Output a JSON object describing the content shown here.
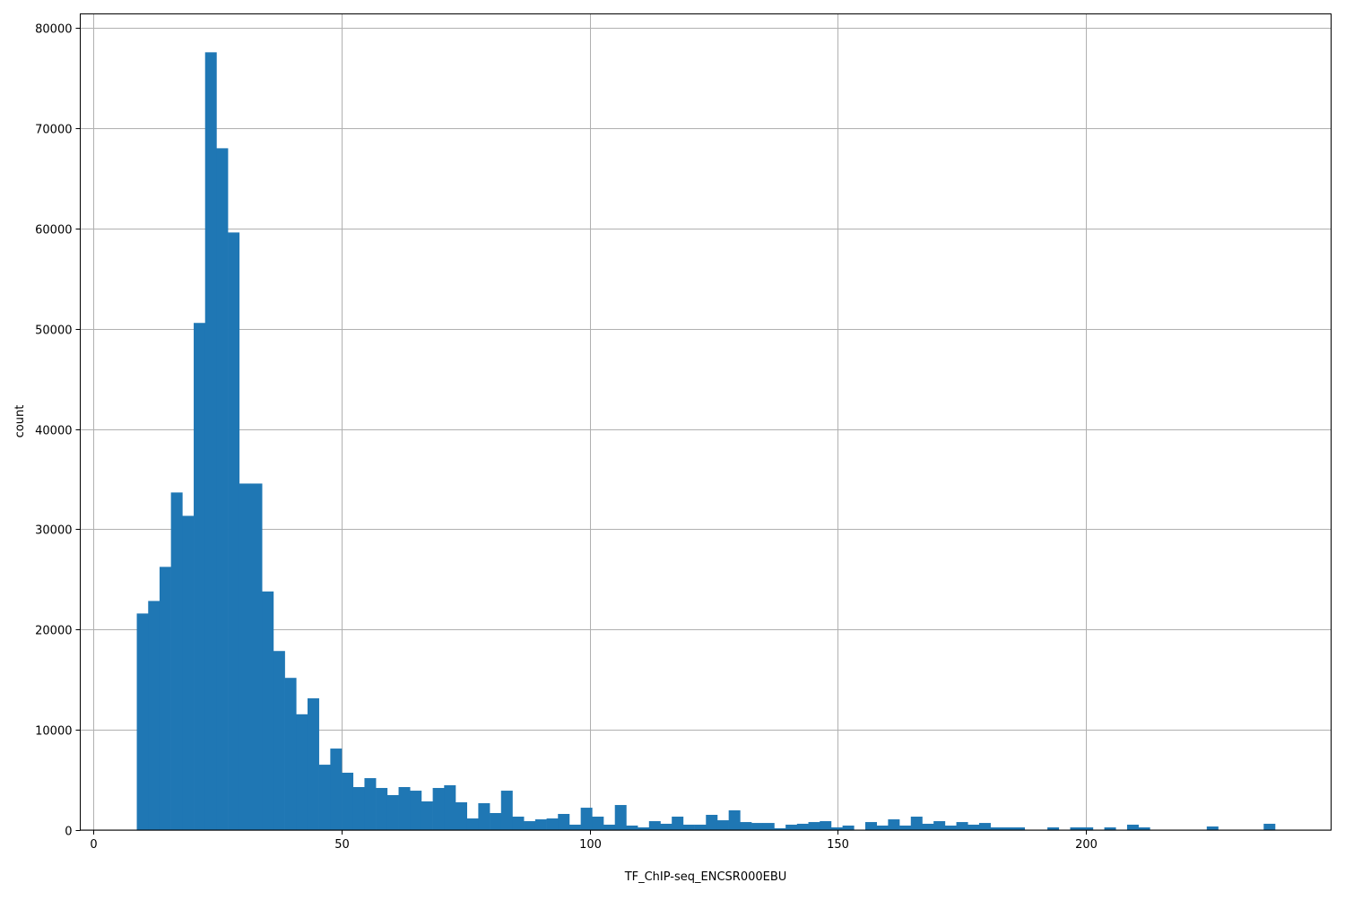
{
  "chart_data": {
    "type": "histogram",
    "title": "",
    "xlabel": "TF_ChIP-seq_ENCSR000EBU",
    "ylabel": "count",
    "xlim": [
      -2.7,
      249.5
    ],
    "ylim": [
      0,
      81400
    ],
    "grid": true,
    "bar_color": "#1f77b4",
    "bin_range": [
      8.7,
      238.2
    ],
    "x_ticks": [
      0,
      50,
      100,
      150,
      200
    ],
    "x_tick_labels": [
      "0",
      "50",
      "100",
      "150",
      "200"
    ],
    "y_ticks": [
      0,
      10000,
      20000,
      30000,
      40000,
      50000,
      60000,
      70000,
      80000
    ],
    "y_tick_labels": [
      "0",
      "10000",
      "20000",
      "30000",
      "40000",
      "50000",
      "60000",
      "70000",
      "80000"
    ],
    "counts": [
      21600,
      22850,
      26250,
      33670,
      31340,
      50580,
      77570,
      68000,
      59600,
      34560,
      34560,
      23800,
      17860,
      15180,
      11550,
      13140,
      6520,
      8130,
      5720,
      4290,
      5180,
      4200,
      3490,
      4290,
      3930,
      2860,
      4200,
      4470,
      2770,
      1160,
      2680,
      1700,
      3930,
      1340,
      890,
      1070,
      1160,
      1610,
      540,
      2230,
      1340,
      540,
      2500,
      450,
      270,
      890,
      630,
      1340,
      540,
      540,
      1520,
      980,
      1970,
      800,
      710,
      710,
      180,
      540,
      630,
      800,
      890,
      270,
      450,
      0,
      800,
      450,
      1070,
      450,
      1340,
      630,
      890,
      450,
      800,
      540,
      710,
      270,
      270,
      270,
      0,
      0,
      270,
      0,
      270,
      270,
      0,
      270,
      0,
      540,
      270,
      0,
      0,
      0,
      0,
      0,
      360,
      0,
      0,
      0,
      0,
      630
    ]
  }
}
